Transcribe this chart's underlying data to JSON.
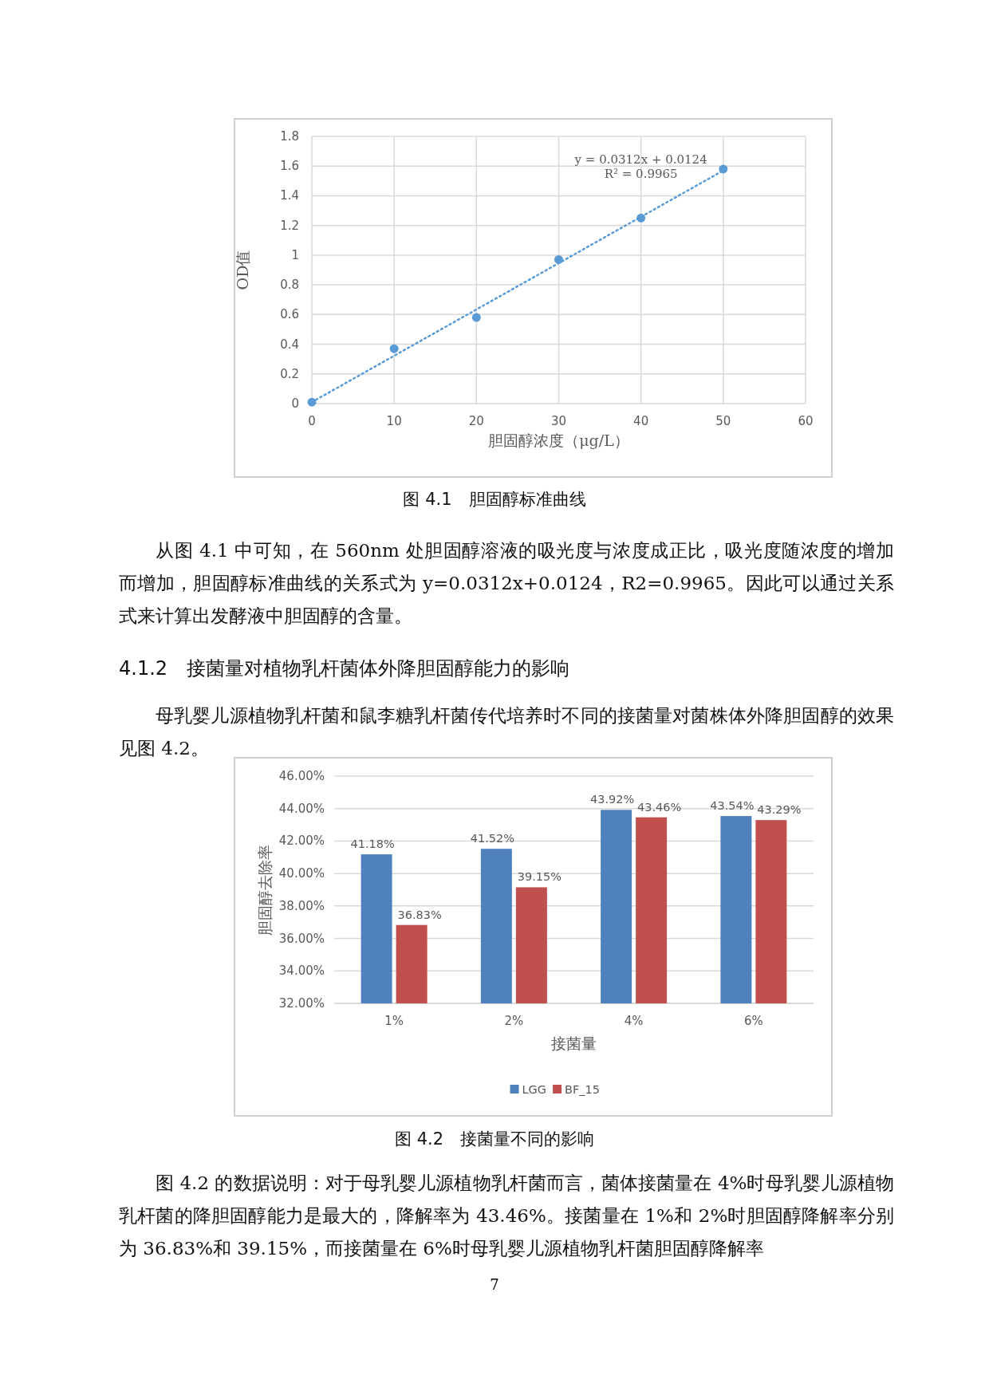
{
  "chart_data": [
    {
      "type": "scatter",
      "title": "图 4.1　胆固醇标准曲线",
      "xlabel": "胆固醇浓度（μg/L）",
      "ylabel": "OD值",
      "xlim": [
        0,
        60
      ],
      "xticks": [
        0,
        10,
        20,
        30,
        40,
        50,
        60
      ],
      "ylim": [
        0,
        1.8
      ],
      "yticks": [
        0,
        0.2,
        0.4,
        0.6,
        0.8,
        1,
        1.2,
        1.4,
        1.6,
        1.8
      ],
      "grid": true,
      "series": [
        {
          "marker": "circle",
          "color": "#5b9bd5",
          "x": [
            0,
            10,
            20,
            30,
            40,
            50
          ],
          "values": [
            0.01,
            0.37,
            0.58,
            0.97,
            1.25,
            1.58
          ]
        },
        {
          "type": "line",
          "color": "#5b9bd5",
          "line_style": "dotted",
          "x": [
            0,
            50
          ],
          "values": [
            0.01,
            1.57
          ]
        }
      ],
      "annotations": [
        "y = 0.0312x + 0.0124",
        "R² = 0.9965",
        "从图 4.1 中可知，在 560nm 处胆固醇溶液的吸光度与浓度成正比，吸光度随浓度的增加而增加，胆固醇标准曲线的关系式为 y=0.0312x+0.0124，R2=0.9965。因此可以通过关系式来计算出发酵液中胆固醇的含量。"
      ]
    },
    {
      "type": "bar",
      "title": "图 4.2　接菌量不同的影响",
      "subtitle": "4.1.2　接菌量对植物乳杆菌体外降胆固醇能力的影响",
      "xlabel": "接菌量",
      "ylabel": "胆固醇去除率",
      "categories": [
        "1%",
        "2%",
        "4%",
        "6%"
      ],
      "ylim": [
        32,
        46
      ],
      "yticks": [
        {
          "value": 32,
          "label": "32.00%"
        },
        {
          "value": 34,
          "label": "34.00%"
        },
        {
          "value": 36,
          "label": "36.00%"
        },
        {
          "value": 38,
          "label": "38.00%"
        },
        {
          "value": 40,
          "label": "40.00%"
        },
        {
          "value": 42,
          "label": "42.00%"
        },
        {
          "value": 44,
          "label": "44.00%"
        },
        {
          "value": 46,
          "label": "46.00%"
        }
      ],
      "grid": "y",
      "legend": "bottom",
      "series": [
        {
          "name": "LGG",
          "color": "#4f81bd",
          "values": [
            41.18,
            41.52,
            43.92,
            43.54
          ],
          "value_labels": [
            "41.18%",
            "41.52%",
            "43.92%",
            "43.54%"
          ]
        },
        {
          "name": "BF_15",
          "color": "#c0504d",
          "values": [
            36.83,
            39.15,
            43.46,
            43.29
          ],
          "value_labels": [
            "36.83%",
            "39.15%",
            "43.46%",
            "43.29%"
          ]
        }
      ],
      "annotations": [
        "母乳婴儿源植物乳杆菌和鼠李糖乳杆菌传代培养时不同的接菌量对菌株体外降胆固醇的效果见图 4.2。",
        "图 4.2 的数据说明：对于母乳婴儿源植物乳杆菌而言，菌体接菌量在 4%时母乳婴儿源植物乳杆菌的降胆固醇能力是最大的，降解率为 43.46%。接菌量在 1%和 2%时胆固醇降解率分别为 36.83%和 39.15%，而接菌量在 6%时母乳婴儿源植物乳杆菌胆固醇降解率",
        "7"
      ]
    }
  ]
}
